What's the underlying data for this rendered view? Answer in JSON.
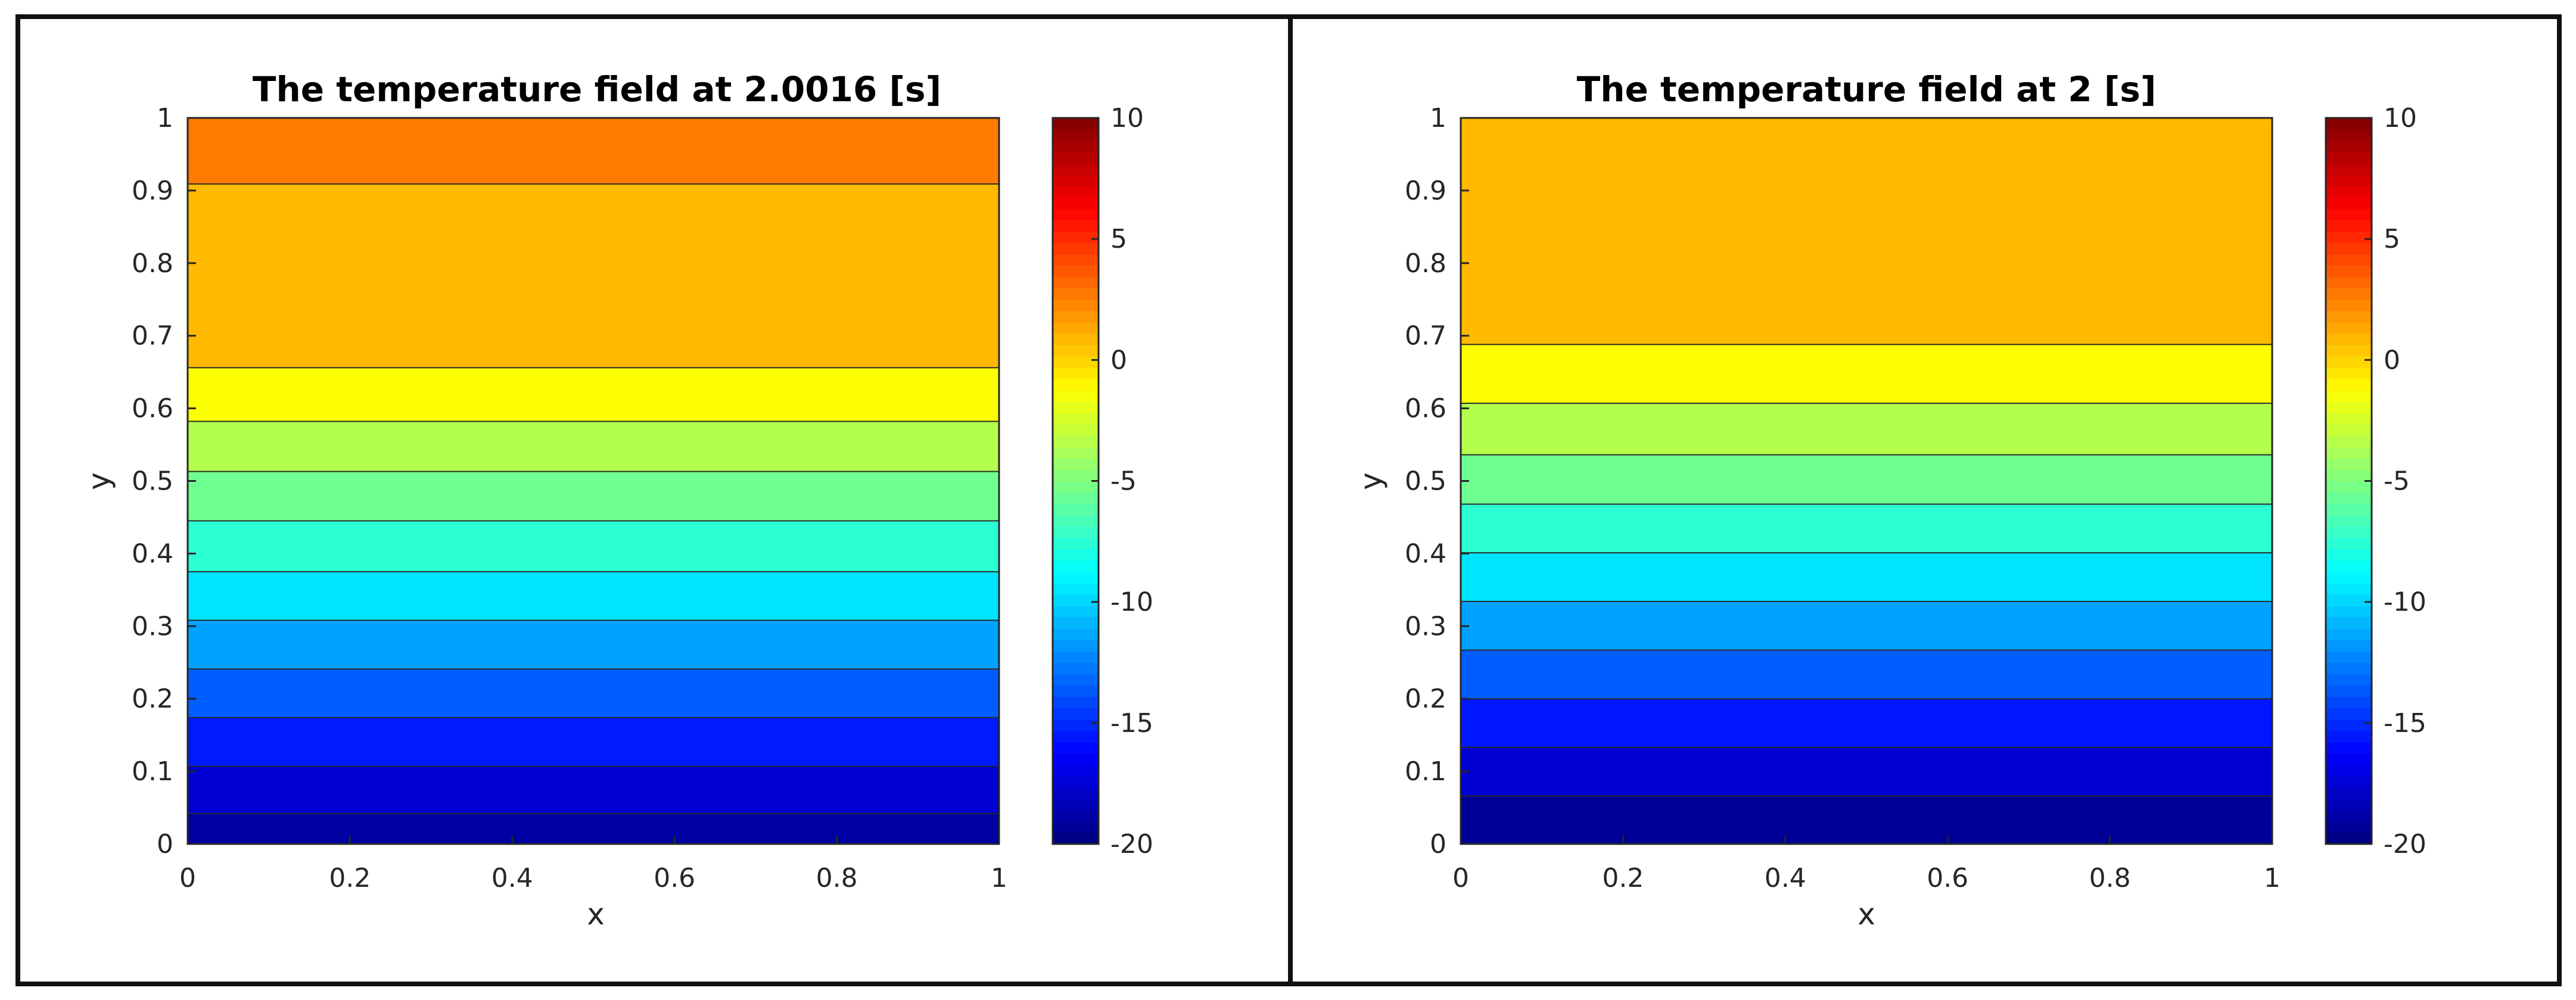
{
  "chart_data": [
    {
      "type": "heatmap",
      "subtype": "filled-contour",
      "title": "The temperature field at 2.0016 [s]",
      "xlabel": "x",
      "ylabel": "y",
      "xlim": [
        0,
        1
      ],
      "ylim": [
        0,
        1
      ],
      "x_ticks": [
        "0",
        "0.2",
        "0.4",
        "0.6",
        "0.8",
        "1"
      ],
      "y_ticks": [
        "0",
        "0.1",
        "0.2",
        "0.3",
        "0.4",
        "0.5",
        "0.6",
        "0.7",
        "0.8",
        "0.9",
        "1"
      ],
      "bands": [
        {
          "y0": 0.0,
          "y1": 0.042,
          "value": -19
        },
        {
          "y0": 0.042,
          "y1": 0.107,
          "value": -17.5
        },
        {
          "y0": 0.107,
          "y1": 0.174,
          "value": -15.5
        },
        {
          "y0": 0.174,
          "y1": 0.241,
          "value": -13.5
        },
        {
          "y0": 0.241,
          "y1": 0.308,
          "value": -11.5
        },
        {
          "y0": 0.308,
          "y1": 0.375,
          "value": -9.5
        },
        {
          "y0": 0.375,
          "y1": 0.445,
          "value": -7.5
        },
        {
          "y0": 0.445,
          "y1": 0.513,
          "value": -5.5
        },
        {
          "y0": 0.513,
          "y1": 0.582,
          "value": -3.5
        },
        {
          "y0": 0.582,
          "y1": 0.656,
          "value": -1.3
        },
        {
          "y0": 0.656,
          "y1": 0.909,
          "value": 0.8
        },
        {
          "y0": 0.909,
          "y1": 1.0,
          "value": 2.6
        }
      ],
      "colorbar": {
        "min": -20,
        "max": 10,
        "ticks": [
          "10",
          "5",
          "0",
          "-5",
          "-10",
          "-15",
          "-20"
        ],
        "colormap": "jet"
      }
    },
    {
      "type": "heatmap",
      "subtype": "filled-contour",
      "title": "The temperature field at 2 [s]",
      "xlabel": "x",
      "ylabel": "y",
      "xlim": [
        0,
        1
      ],
      "ylim": [
        0,
        1
      ],
      "x_ticks": [
        "0",
        "0.2",
        "0.4",
        "0.6",
        "0.8",
        "1"
      ],
      "y_ticks": [
        "0",
        "0.1",
        "0.2",
        "0.3",
        "0.4",
        "0.5",
        "0.6",
        "0.7",
        "0.8",
        "0.9",
        "1"
      ],
      "bands": [
        {
          "y0": 0.0,
          "y1": 0.066,
          "value": -19.3
        },
        {
          "y0": 0.066,
          "y1": 0.133,
          "value": -17.6
        },
        {
          "y0": 0.133,
          "y1": 0.2,
          "value": -15.6
        },
        {
          "y0": 0.2,
          "y1": 0.267,
          "value": -13.5
        },
        {
          "y0": 0.267,
          "y1": 0.334,
          "value": -11.5
        },
        {
          "y0": 0.334,
          "y1": 0.401,
          "value": -9.5
        },
        {
          "y0": 0.401,
          "y1": 0.468,
          "value": -7.5
        },
        {
          "y0": 0.468,
          "y1": 0.536,
          "value": -5.5
        },
        {
          "y0": 0.536,
          "y1": 0.607,
          "value": -3.5
        },
        {
          "y0": 0.607,
          "y1": 0.688,
          "value": -1.3
        },
        {
          "y0": 0.688,
          "y1": 1.0,
          "value": 0.8
        }
      ],
      "colorbar": {
        "min": -20,
        "max": 10,
        "ticks": [
          "10",
          "5",
          "0",
          "-5",
          "-10",
          "-15",
          "-20"
        ],
        "colormap": "jet"
      }
    }
  ]
}
